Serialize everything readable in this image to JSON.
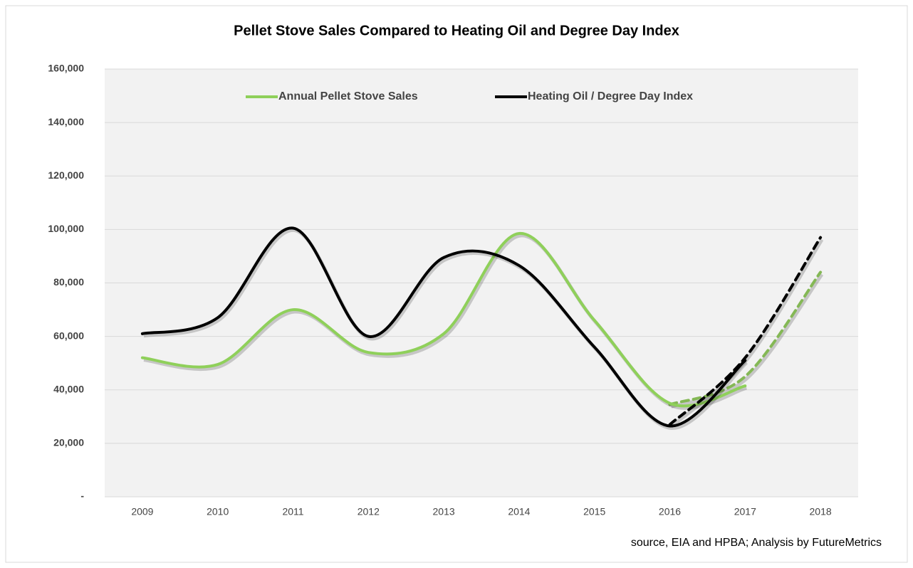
{
  "chart_data": {
    "type": "line",
    "title": "Pellet Stove Sales Compared to Heating Oil and Degree Day Index",
    "source": "source, EIA and HPBA; Analysis by FutureMetrics",
    "categories": [
      "2009",
      "2010",
      "2011",
      "2012",
      "2013",
      "2014",
      "2015",
      "2016",
      "2017",
      "2018"
    ],
    "series": [
      {
        "name": "Annual Pellet Stove Sales",
        "color": "#8fd05a",
        "forecast_color": "#84b855",
        "values": [
          52000,
          49500,
          70000,
          54000,
          61000,
          98500,
          66000,
          35000,
          41500,
          null
        ],
        "forecast_values": [
          null,
          null,
          null,
          null,
          null,
          null,
          null,
          34500,
          45000,
          84000
        ]
      },
      {
        "name": "Heating Oil / Degree Day Index",
        "color": "#000000",
        "forecast_color": "#000000",
        "values": [
          61000,
          67000,
          100500,
          60000,
          89500,
          86500,
          56000,
          26500,
          51000,
          null
        ],
        "forecast_values": [
          null,
          null,
          null,
          null,
          null,
          null,
          null,
          27000,
          52000,
          97000
        ]
      }
    ],
    "ylim": [
      0,
      160000
    ],
    "yticks": [
      {
        "value": 0,
        "label": "-"
      },
      {
        "value": 20000,
        "label": "20,000"
      },
      {
        "value": 40000,
        "label": "40,000"
      },
      {
        "value": 60000,
        "label": "60,000"
      },
      {
        "value": 80000,
        "label": "80,000"
      },
      {
        "value": 100000,
        "label": "100,000"
      },
      {
        "value": 120000,
        "label": "120,000"
      },
      {
        "value": 140000,
        "label": "140,000"
      },
      {
        "value": 160000,
        "label": "160,000"
      }
    ],
    "grid": true,
    "legend": "top"
  }
}
